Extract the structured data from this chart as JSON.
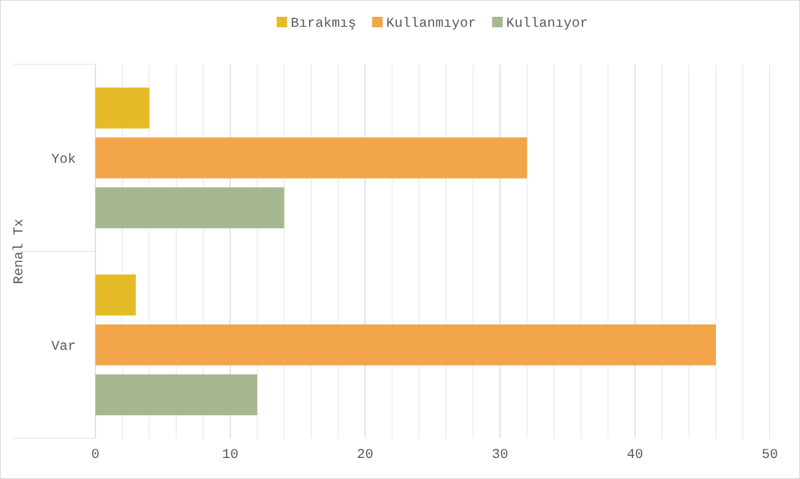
{
  "chart_data": {
    "type": "bar",
    "orientation": "horizontal",
    "ylabel": "Renal Tx",
    "categories": [
      "Yok",
      "Var"
    ],
    "series": [
      {
        "name": "Bırakmış",
        "color": "#e5bb29",
        "values": [
          4,
          3
        ]
      },
      {
        "name": "Kullanmıyor",
        "color": "#f3a54a",
        "values": [
          32,
          46
        ]
      },
      {
        "name": "Kullanıyor",
        "color": "#a7b791",
        "values": [
          14,
          12
        ]
      }
    ],
    "xlim": [
      0,
      50
    ],
    "xticks": [
      0,
      {
        "value": 2,
        "label": null
      },
      {
        "value": 4,
        "label": null
      },
      {
        "value": 6,
        "label": null
      },
      {
        "value": 8,
        "label": null
      },
      10,
      {
        "value": 12,
        "label": null
      },
      {
        "value": 14,
        "label": null
      },
      {
        "value": 16,
        "label": null
      },
      {
        "value": 18,
        "label": null
      },
      20,
      {
        "value": 22,
        "label": null
      },
      {
        "value": 24,
        "label": null
      },
      {
        "value": 26,
        "label": null
      },
      {
        "value": 28,
        "label": null
      },
      30,
      {
        "value": 32,
        "label": null
      },
      {
        "value": 34,
        "label": null
      },
      {
        "value": 36,
        "label": null
      },
      {
        "value": 38,
        "label": null
      },
      40,
      {
        "value": 42,
        "label": null
      },
      {
        "value": 44,
        "label": null
      },
      {
        "value": 46,
        "label": null
      },
      {
        "value": 48,
        "label": null
      },
      50
    ],
    "grid": "x",
    "legend": "top"
  }
}
